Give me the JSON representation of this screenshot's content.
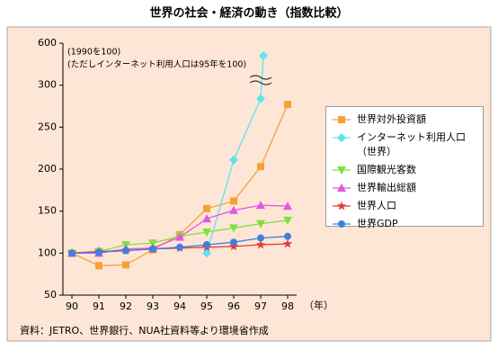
{
  "chart_data": {
    "type": "line",
    "title": "世界の社会・経済の動き（指数比較）",
    "annotations": [
      "(1990を100)",
      "(ただしインターネット利用人口は95年を100)"
    ],
    "source": "資料：JETRO、世界銀行、NUA社資料等より環境省作成",
    "x_unit": "（年）",
    "x": [
      90,
      91,
      92,
      93,
      94,
      95,
      96,
      97,
      98
    ],
    "xlim": [
      90,
      98
    ],
    "xticks": [
      90,
      91,
      92,
      93,
      94,
      95,
      96,
      97,
      98
    ],
    "ylim": [
      50,
      600
    ],
    "yticks": [
      50,
      100,
      150,
      200,
      250,
      300,
      600
    ],
    "series": [
      {
        "name": "世界対外投資額",
        "color": "#f7a035",
        "marker": "square",
        "values": [
          100,
          85,
          86,
          104,
          122,
          153,
          162,
          203,
          277
        ]
      },
      {
        "name": "インターネット利用人口（世界）",
        "color": "#5fe3f0",
        "marker": "diamond",
        "x": [
          95,
          96,
          97,
          97.1
        ],
        "values": [
          100,
          211,
          284,
          510
        ]
      },
      {
        "name": "国際観光客数",
        "color": "#7fe040",
        "marker": "tri-down",
        "values": [
          100,
          102,
          110,
          112,
          120,
          125,
          130,
          135,
          139
        ]
      },
      {
        "name": "世界輸出総額",
        "color": "#e455e4",
        "marker": "tri-up",
        "values": [
          100,
          100,
          105,
          106,
          119,
          141,
          151,
          157,
          156
        ]
      },
      {
        "name": "世界人口",
        "color": "#e03a3a",
        "marker": "star",
        "values": [
          100,
          102,
          103,
          105,
          106,
          107,
          108,
          110,
          111
        ]
      },
      {
        "name": "世界GDP",
        "color": "#3f7fe0",
        "marker": "circle",
        "values": [
          100,
          101,
          103,
          105,
          107,
          110,
          113,
          118,
          120
        ]
      }
    ]
  }
}
